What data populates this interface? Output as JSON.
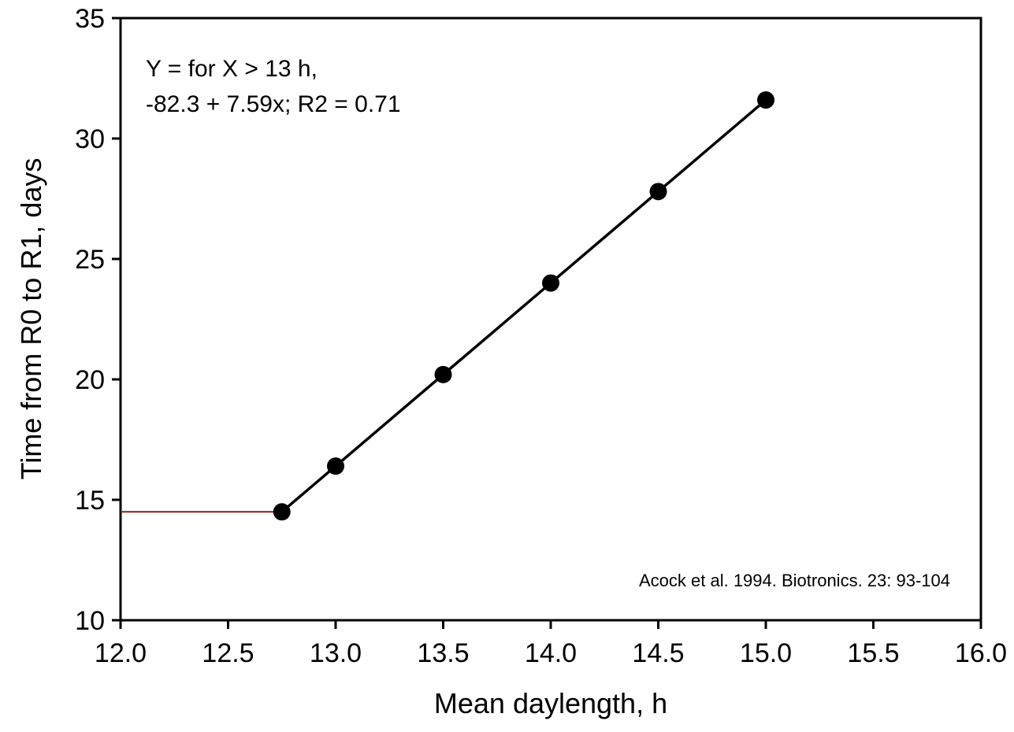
{
  "chart_data": {
    "type": "line",
    "title": "",
    "xlabel": "Mean daylength, h",
    "ylabel": "Time from R0 to R1, days",
    "xlim": [
      12.0,
      16.0
    ],
    "ylim": [
      10,
      35
    ],
    "x_ticks": [
      12.0,
      12.5,
      13.0,
      13.5,
      14.0,
      14.5,
      15.0,
      15.5,
      16.0
    ],
    "x_tick_labels": [
      "12.0",
      "12.5",
      "13.0",
      "13.5",
      "14.0",
      "14.5",
      "15.0",
      "15.5",
      "16.0"
    ],
    "y_ticks": [
      10,
      15,
      20,
      25,
      30,
      35
    ],
    "y_tick_labels": [
      "10",
      "15",
      "20",
      "25",
      "30",
      "35"
    ],
    "grid": false,
    "series": [
      {
        "x": [
          12.75,
          13.0,
          13.5,
          14.0,
          14.5,
          15.0
        ],
        "y": [
          14.5,
          16.4,
          20.2,
          24.0,
          27.8,
          31.6
        ],
        "color": "#000000",
        "markers": true
      },
      {
        "x": [
          12.0,
          12.75
        ],
        "y": [
          14.5,
          14.5
        ],
        "color": "#8b1a1a",
        "markers": false
      }
    ],
    "annotations": {
      "equation_line1": "Y = for X > 13 h,",
      "equation_line2": "-82.3 + 7.59x; R2 = 0.71",
      "citation": "Acock et al. 1994. Biotronics. 23: 93-104"
    }
  }
}
